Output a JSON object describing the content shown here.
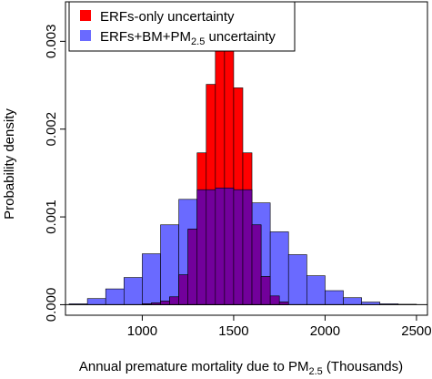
{
  "chart_data": {
    "type": "bar",
    "title": "",
    "xlabel": "Annual premature mortality due to PM",
    "xlabel_sub": "2.5",
    "xlabel_suffix": " (Thousands)",
    "ylabel": "Probability density",
    "xlim": [
      580,
      2560
    ],
    "ylim": [
      -0.00012,
      0.00345
    ],
    "x_ticks": [
      1000,
      1500,
      2000,
      2500
    ],
    "x_tick_labels": [
      "1000",
      "1500",
      "2000",
      "2500"
    ],
    "y_ticks": [
      0.0,
      0.001,
      0.002,
      0.003
    ],
    "y_tick_labels": [
      "0.000",
      "0.001",
      "0.002",
      "0.003"
    ],
    "grid": false,
    "legend_position": "top-left",
    "bin_width": 50,
    "colors": {
      "red": "#ff0000",
      "blue": "#6a6aff",
      "overlap": "#72009b",
      "frame": "#000000"
    },
    "series": [
      {
        "name": "ERFs-only uncertainty",
        "legend_text": "ERFs-only uncertainty",
        "color": "#ff0000",
        "bins": [
          {
            "x0": 1000,
            "x1": 1050,
            "value": 1e-05
          },
          {
            "x0": 1050,
            "x1": 1100,
            "value": 2e-05
          },
          {
            "x0": 1100,
            "x1": 1150,
            "value": 4e-05
          },
          {
            "x0": 1150,
            "x1": 1200,
            "value": 9e-05
          },
          {
            "x0": 1200,
            "x1": 1250,
            "value": 0.00034
          },
          {
            "x0": 1250,
            "x1": 1300,
            "value": 0.00086
          },
          {
            "x0": 1300,
            "x1": 1350,
            "value": 0.00173
          },
          {
            "x0": 1350,
            "x1": 1400,
            "value": 0.00251
          },
          {
            "x0": 1400,
            "x1": 1450,
            "value": 0.00316
          },
          {
            "x0": 1450,
            "x1": 1500,
            "value": 0.00319
          },
          {
            "x0": 1500,
            "x1": 1550,
            "value": 0.00247
          },
          {
            "x0": 1550,
            "x1": 1600,
            "value": 0.00173
          },
          {
            "x0": 1600,
            "x1": 1650,
            "value": 0.00091
          },
          {
            "x0": 1650,
            "x1": 1700,
            "value": 0.00032
          },
          {
            "x0": 1700,
            "x1": 1750,
            "value": 0.0001
          },
          {
            "x0": 1750,
            "x1": 1800,
            "value": 3e-05
          }
        ]
      },
      {
        "name": "ERFs+BM+PM2.5 uncertainty",
        "legend_text": "ERFs+BM+PM",
        "legend_sub": "2.5",
        "legend_suffix": " uncertainty",
        "color": "#6a6aff",
        "bins": [
          {
            "x0": 600,
            "x1": 700,
            "value": 1e-05
          },
          {
            "x0": 700,
            "x1": 800,
            "value": 7e-05
          },
          {
            "x0": 800,
            "x1": 900,
            "value": 0.00018
          },
          {
            "x0": 900,
            "x1": 1000,
            "value": 0.00031
          },
          {
            "x0": 1000,
            "x1": 1100,
            "value": 0.00058
          },
          {
            "x0": 1100,
            "x1": 1200,
            "value": 0.00091
          },
          {
            "x0": 1200,
            "x1": 1300,
            "value": 0.0012
          },
          {
            "x0": 1300,
            "x1": 1400,
            "value": 0.00131
          },
          {
            "x0": 1400,
            "x1": 1500,
            "value": 0.00133
          },
          {
            "x0": 1500,
            "x1": 1600,
            "value": 0.00131
          },
          {
            "x0": 1600,
            "x1": 1700,
            "value": 0.00116
          },
          {
            "x0": 1700,
            "x1": 1800,
            "value": 0.00083
          },
          {
            "x0": 1800,
            "x1": 1900,
            "value": 0.00057
          },
          {
            "x0": 1900,
            "x1": 2000,
            "value": 0.00033
          },
          {
            "x0": 2000,
            "x1": 2100,
            "value": 0.00016
          },
          {
            "x0": 2100,
            "x1": 2200,
            "value": 8e-05
          },
          {
            "x0": 2200,
            "x1": 2300,
            "value": 3e-05
          },
          {
            "x0": 2300,
            "x1": 2400,
            "value": 1e-05
          },
          {
            "x0": 2400,
            "x1": 2500,
            "value": 5e-06
          }
        ]
      }
    ]
  }
}
